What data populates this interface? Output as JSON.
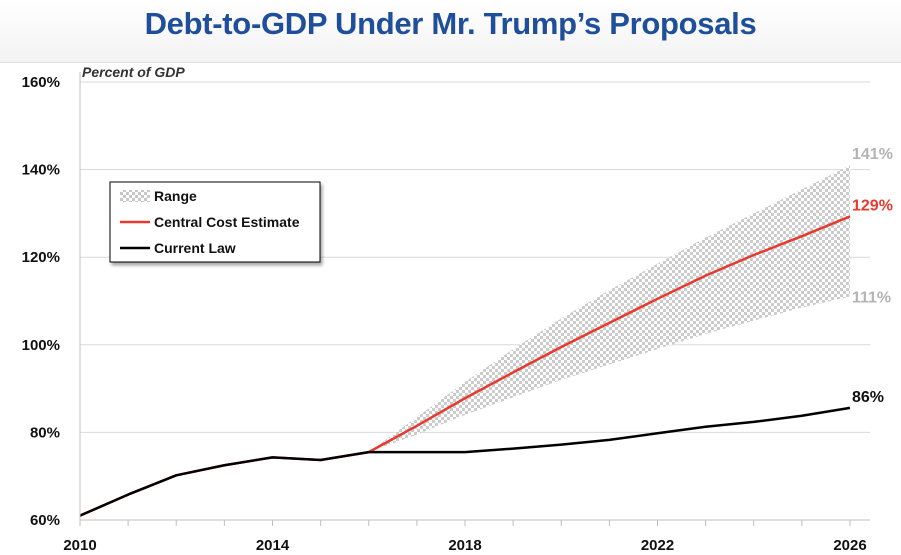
{
  "title": "Debt-to-GDP Under Mr. Trump’s Proposals",
  "colors": {
    "title": "#1f4e9a",
    "central": "#e8392e",
    "current_law": "#000000",
    "range": "#c8c8c8",
    "range_label": "#b3b3b3",
    "grid": "#d9d9d9"
  },
  "chart_data": {
    "type": "line",
    "title": "Debt-to-GDP Under Mr. Trump’s Proposals",
    "ylabel": "Percent of GDP",
    "xlabel": "",
    "xlim": [
      2010,
      2026
    ],
    "ylim": [
      60,
      160
    ],
    "x_ticks": [
      "2010",
      "2014",
      "2018",
      "2022",
      "2026"
    ],
    "y_ticks": [
      "60%",
      "80%",
      "100%",
      "120%",
      "140%",
      "160%"
    ],
    "grid": "horizontal",
    "legend_position": "top-left",
    "legend": [
      "Range",
      "Central Cost Estimate",
      "Current Law"
    ],
    "series": [
      {
        "name": "Current Law",
        "x": [
          2010,
          2011,
          2012,
          2013,
          2014,
          2015,
          2016,
          2017,
          2018,
          2019,
          2020,
          2021,
          2022,
          2023,
          2024,
          2025,
          2026
        ],
        "values": [
          61,
          65.8,
          70.2,
          72.5,
          74.3,
          73.7,
          75.5,
          75.5,
          75.5,
          76.3,
          77.2,
          78.3,
          79.8,
          81.3,
          82.4,
          83.8,
          85.6
        ],
        "end_label": "86%"
      },
      {
        "name": "Central Cost Estimate",
        "x": [
          2010,
          2011,
          2012,
          2013,
          2014,
          2015,
          2016,
          2017,
          2018,
          2019,
          2020,
          2021,
          2022,
          2023,
          2024,
          2025,
          2026
        ],
        "values": [
          61,
          65.8,
          70.2,
          72.5,
          74.3,
          73.7,
          75.5,
          81.5,
          87.8,
          93.7,
          99.5,
          105,
          110.5,
          115.8,
          120.5,
          124.8,
          129.3
        ],
        "end_label": "129%"
      },
      {
        "name": "Range",
        "x": [
          2016,
          2017,
          2018,
          2019,
          2020,
          2021,
          2022,
          2023,
          2024,
          2025,
          2026
        ],
        "low": [
          75.5,
          79.5,
          84,
          88,
          92,
          95.5,
          99,
          102.5,
          105.5,
          108.5,
          111
        ],
        "high": [
          75.5,
          83.5,
          91.5,
          99,
          106,
          112.5,
          118.5,
          124.5,
          130,
          135.5,
          141
        ],
        "high_label": "141%",
        "low_label": "111%"
      }
    ]
  }
}
